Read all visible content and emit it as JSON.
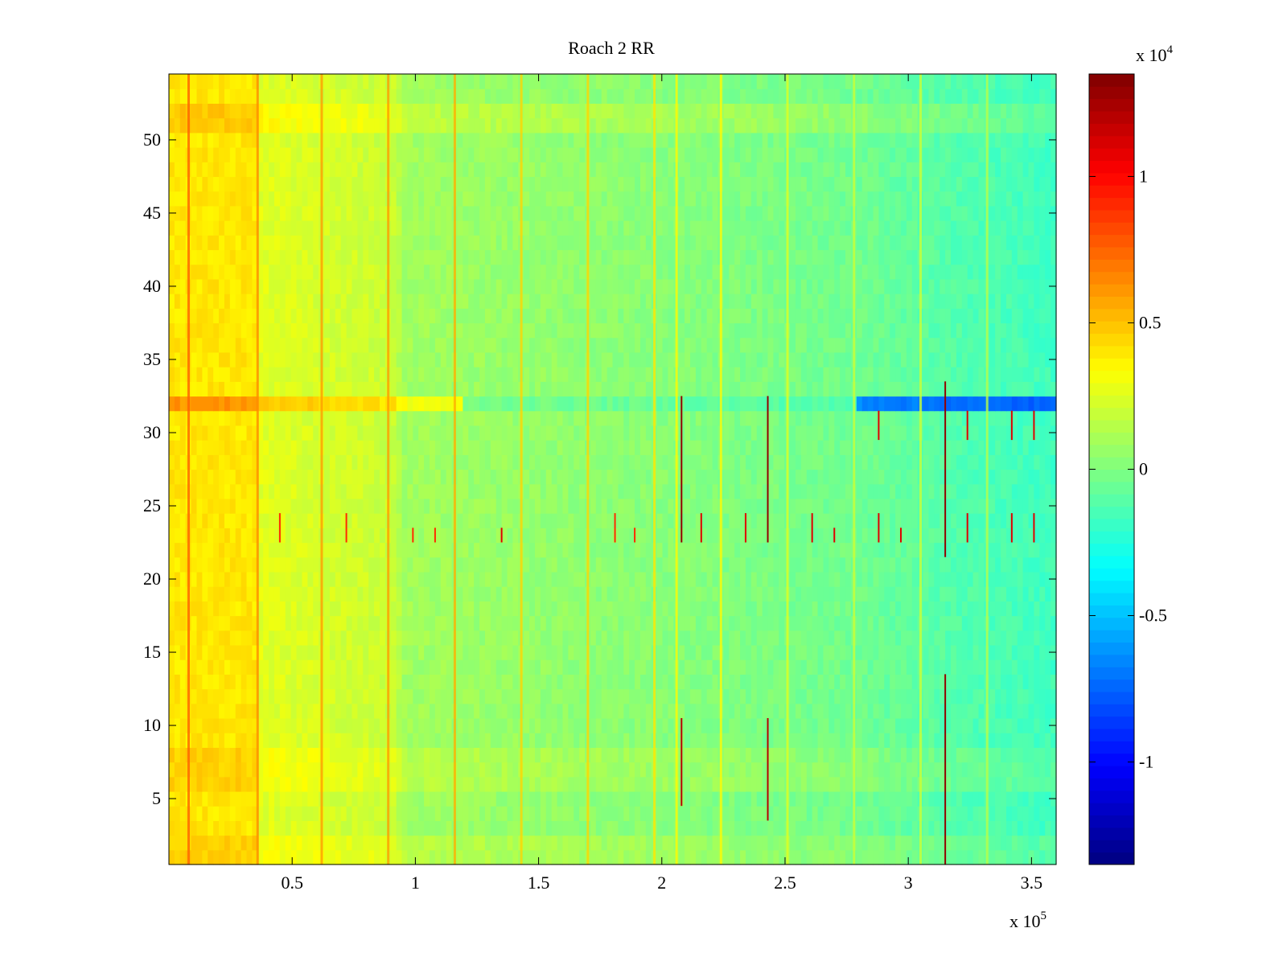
{
  "chart_data": {
    "type": "heatmap",
    "title": "Roach 2 RR",
    "xlabel": "",
    "ylabel": "",
    "x_range": [
      0,
      360000
    ],
    "y_range": [
      0.5,
      54.5
    ],
    "x_ticks": [
      50000,
      100000,
      150000,
      200000,
      250000,
      300000,
      350000
    ],
    "x_tick_labels": [
      "0.5",
      "1",
      "1.5",
      "2",
      "2.5",
      "3",
      "3.5"
    ],
    "x_multiplier_base": "x 10",
    "x_multiplier_exp": "5",
    "y_ticks": [
      5,
      10,
      15,
      20,
      25,
      30,
      35,
      40,
      45,
      50
    ],
    "y_tick_labels": [
      "5",
      "10",
      "15",
      "20",
      "25",
      "30",
      "35",
      "40",
      "45",
      "50"
    ],
    "colorbar": {
      "range": [
        -13500,
        13500
      ],
      "ticks": [
        -10000,
        -5000,
        0,
        5000,
        10000
      ],
      "tick_labels": [
        "-1",
        "-0.5",
        "0",
        "0.5",
        "1"
      ],
      "multiplier_base": "x 10",
      "multiplier_exp": "4",
      "colormap": "jet"
    },
    "grid": false,
    "column_profile": {
      "x": [
        0,
        35000,
        37000,
        92000,
        95000,
        200000,
        280000,
        315000,
        360000
      ],
      "value": [
        4000,
        4000,
        2600,
        1900,
        900,
        200,
        -400,
        -1100,
        -1700
      ]
    },
    "row_features": [
      {
        "rows": [
          1,
          2
        ],
        "x_from": 0,
        "x_to": 360000,
        "offset": 600
      },
      {
        "rows": [
          6,
          8
        ],
        "x_from": 0,
        "x_to": 360000,
        "offset": 600
      },
      {
        "rows": [
          32
        ],
        "x_from": 0,
        "x_to": 120000,
        "offset": 2200
      },
      {
        "rows": [
          32
        ],
        "x_from": 120000,
        "x_to": 280000,
        "offset": -900
      },
      {
        "rows": [
          32
        ],
        "x_from": 280000,
        "x_to": 360000,
        "offset": -6000
      },
      {
        "rows": [
          51,
          52
        ],
        "x_from": 0,
        "x_to": 360000,
        "offset": 800
      }
    ],
    "vertical_lines": [
      {
        "x": 8000,
        "value": 7500
      },
      {
        "x": 36000,
        "value": 6500
      },
      {
        "x": 62000,
        "value": 6000
      },
      {
        "x": 89000,
        "value": 6000
      },
      {
        "x": 116000,
        "value": 5500
      },
      {
        "x": 143000,
        "value": 4500
      },
      {
        "x": 170000,
        "value": 4500
      },
      {
        "x": 197000,
        "value": 4000
      },
      {
        "x": 206000,
        "value": 3500
      },
      {
        "x": 224000,
        "value": 3500
      },
      {
        "x": 251000,
        "value": 2500
      },
      {
        "x": 278000,
        "value": 2000
      },
      {
        "x": 305000,
        "value": 2000
      },
      {
        "x": 332000,
        "value": 1500
      }
    ],
    "spikes": [
      {
        "x": 45000,
        "y_from": 22.5,
        "y_to": 24.5,
        "value": 9000
      },
      {
        "x": 72000,
        "y_from": 22.5,
        "y_to": 24.5,
        "value": 9000
      },
      {
        "x": 99000,
        "y_from": 22.5,
        "y_to": 23.5,
        "value": 9000
      },
      {
        "x": 108000,
        "y_from": 22.5,
        "y_to": 23.5,
        "value": 9000
      },
      {
        "x": 135000,
        "y_from": 22.5,
        "y_to": 23.5,
        "value": 11000
      },
      {
        "x": 181000,
        "y_from": 22.5,
        "y_to": 24.5,
        "value": 9000
      },
      {
        "x": 189000,
        "y_from": 22.5,
        "y_to": 23.5,
        "value": 9000
      },
      {
        "x": 208000,
        "y_from": 22.5,
        "y_to": 32.5,
        "value": 13000
      },
      {
        "x": 216000,
        "y_from": 22.5,
        "y_to": 24.5,
        "value": 11000
      },
      {
        "x": 234000,
        "y_from": 22.5,
        "y_to": 24.5,
        "value": 11000
      },
      {
        "x": 243000,
        "y_from": 22.5,
        "y_to": 32.5,
        "value": 13000
      },
      {
        "x": 261000,
        "y_from": 22.5,
        "y_to": 24.5,
        "value": 11000
      },
      {
        "x": 270000,
        "y_from": 22.5,
        "y_to": 23.5,
        "value": 11000
      },
      {
        "x": 288000,
        "y_from": 22.5,
        "y_to": 24.5,
        "value": 11000
      },
      {
        "x": 297000,
        "y_from": 22.5,
        "y_to": 23.5,
        "value": 11000
      },
      {
        "x": 315000,
        "y_from": 21.5,
        "y_to": 33.5,
        "value": 13000
      },
      {
        "x": 324000,
        "y_from": 22.5,
        "y_to": 24.5,
        "value": 11000
      },
      {
        "x": 342000,
        "y_from": 22.5,
        "y_to": 24.5,
        "value": 11000
      },
      {
        "x": 351000,
        "y_from": 22.5,
        "y_to": 24.5,
        "value": 11000
      },
      {
        "x": 288000,
        "y_from": 29.5,
        "y_to": 31.5,
        "value": 11000
      },
      {
        "x": 324000,
        "y_from": 29.5,
        "y_to": 31.5,
        "value": 11000
      },
      {
        "x": 342000,
        "y_from": 29.5,
        "y_to": 31.5,
        "value": 11000
      },
      {
        "x": 351000,
        "y_from": 29.5,
        "y_to": 31.5,
        "value": 11000
      },
      {
        "x": 208000,
        "y_from": 4.5,
        "y_to": 10.5,
        "value": 12000
      },
      {
        "x": 243000,
        "y_from": 3.5,
        "y_to": 10.5,
        "value": 12000
      },
      {
        "x": 315000,
        "y_from": 0.5,
        "y_to": 13.5,
        "value": 13000
      }
    ]
  }
}
